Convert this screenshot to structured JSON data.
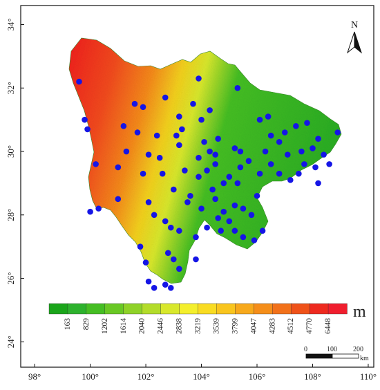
{
  "map": {
    "x_ticks": [
      "98°",
      "100°",
      "102°",
      "104°",
      "106°",
      "108°",
      "110°"
    ],
    "y_ticks": [
      "34°",
      "32°",
      "30°",
      "28°",
      "26°",
      "24°"
    ],
    "extent": {
      "lon_min": 97.5,
      "lon_max": 110.2,
      "lat_min": 23.2,
      "lat_max": 34.6
    },
    "colors": {
      "high": "#f02818",
      "mid_high": "#f58a1a",
      "mid": "#f3e01a",
      "mid_low": "#a6d52b",
      "low": "#33b424",
      "station": "#1515e6"
    }
  },
  "legend": {
    "values": [
      "163",
      "829",
      "1202",
      "1614",
      "2040",
      "2446",
      "2838",
      "3219",
      "3539",
      "3799",
      "4047",
      "4283",
      "4512",
      "4770",
      "6448"
    ],
    "colors": [
      "#1aa51a",
      "#2db22d",
      "#45be23",
      "#69c824",
      "#8fd228",
      "#b3dc2a",
      "#d8e82c",
      "#f4ef2c",
      "#f9dc22",
      "#f9c51e",
      "#f7a91c",
      "#f58e1a",
      "#f2711a",
      "#ef5219",
      "#ee2a1f",
      "#f01e2e"
    ],
    "unit": "m"
  },
  "north_arrow": {
    "label": "N"
  },
  "scale_bar": {
    "labels": [
      "0",
      "100",
      "200"
    ],
    "unit": "km"
  },
  "stations": [
    {
      "lon": 99.6,
      "lat": 32.2
    },
    {
      "lon": 99.9,
      "lat": 30.7
    },
    {
      "lon": 99.8,
      "lat": 31.0
    },
    {
      "lon": 100.2,
      "lat": 29.6
    },
    {
      "lon": 100.0,
      "lat": 28.1
    },
    {
      "lon": 100.3,
      "lat": 28.2
    },
    {
      "lon": 101.2,
      "lat": 30.8
    },
    {
      "lon": 101.6,
      "lat": 31.5
    },
    {
      "lon": 101.7,
      "lat": 30.6
    },
    {
      "lon": 101.3,
      "lat": 30.0
    },
    {
      "lon": 101.9,
      "lat": 31.4
    },
    {
      "lon": 102.1,
      "lat": 29.9
    },
    {
      "lon": 101.0,
      "lat": 29.5
    },
    {
      "lon": 101.0,
      "lat": 28.5
    },
    {
      "lon": 101.9,
      "lat": 29.3
    },
    {
      "lon": 102.5,
      "lat": 29.8
    },
    {
      "lon": 102.6,
      "lat": 29.3
    },
    {
      "lon": 102.7,
      "lat": 31.7
    },
    {
      "lon": 103.1,
      "lat": 30.5
    },
    {
      "lon": 103.3,
      "lat": 30.7
    },
    {
      "lon": 103.2,
      "lat": 30.2
    },
    {
      "lon": 103.4,
      "lat": 29.4
    },
    {
      "lon": 103.7,
      "lat": 31.5
    },
    {
      "lon": 103.9,
      "lat": 32.3
    },
    {
      "lon": 104.3,
      "lat": 31.3
    },
    {
      "lon": 105.3,
      "lat": 32.0
    },
    {
      "lon": 102.1,
      "lat": 28.4
    },
    {
      "lon": 102.7,
      "lat": 27.8
    },
    {
      "lon": 102.3,
      "lat": 28.0
    },
    {
      "lon": 103.0,
      "lat": 28.8
    },
    {
      "lon": 103.2,
      "lat": 27.5
    },
    {
      "lon": 102.9,
      "lat": 27.6
    },
    {
      "lon": 101.8,
      "lat": 27.0
    },
    {
      "lon": 102.0,
      "lat": 26.5
    },
    {
      "lon": 102.8,
      "lat": 26.8
    },
    {
      "lon": 103.0,
      "lat": 26.6
    },
    {
      "lon": 103.2,
      "lat": 26.3
    },
    {
      "lon": 102.1,
      "lat": 25.9
    },
    {
      "lon": 102.3,
      "lat": 25.7
    },
    {
      "lon": 102.7,
      "lat": 25.8
    },
    {
      "lon": 102.9,
      "lat": 25.7
    },
    {
      "lon": 103.8,
      "lat": 26.6
    },
    {
      "lon": 103.8,
      "lat": 27.3
    },
    {
      "lon": 104.2,
      "lat": 27.6
    },
    {
      "lon": 104.0,
      "lat": 28.2
    },
    {
      "lon": 103.6,
      "lat": 28.6
    },
    {
      "lon": 103.9,
      "lat": 29.2
    },
    {
      "lon": 104.2,
      "lat": 29.4
    },
    {
      "lon": 104.5,
      "lat": 29.6
    },
    {
      "lon": 104.1,
      "lat": 30.3
    },
    {
      "lon": 104.3,
      "lat": 30.0
    },
    {
      "lon": 104.6,
      "lat": 30.4
    },
    {
      "lon": 104.0,
      "lat": 31.0
    },
    {
      "lon": 104.5,
      "lat": 28.5
    },
    {
      "lon": 104.8,
      "lat": 28.1
    },
    {
      "lon": 104.6,
      "lat": 27.9
    },
    {
      "lon": 105.0,
      "lat": 29.2
    },
    {
      "lon": 105.3,
      "lat": 29.0
    },
    {
      "lon": 105.4,
      "lat": 29.5
    },
    {
      "lon": 105.7,
      "lat": 29.7
    },
    {
      "lon": 105.2,
      "lat": 30.1
    },
    {
      "lon": 105.4,
      "lat": 30.0
    },
    {
      "lon": 105.2,
      "lat": 28.3
    },
    {
      "lon": 105.5,
      "lat": 28.2
    },
    {
      "lon": 105.8,
      "lat": 28.0
    },
    {
      "lon": 105.2,
      "lat": 27.5
    },
    {
      "lon": 105.5,
      "lat": 27.3
    },
    {
      "lon": 105.9,
      "lat": 27.2
    },
    {
      "lon": 106.2,
      "lat": 27.5
    },
    {
      "lon": 106.1,
      "lat": 29.3
    },
    {
      "lon": 106.0,
      "lat": 28.6
    },
    {
      "lon": 106.5,
      "lat": 29.6
    },
    {
      "lon": 106.3,
      "lat": 30.0
    },
    {
      "lon": 106.5,
      "lat": 30.5
    },
    {
      "lon": 106.1,
      "lat": 31.0
    },
    {
      "lon": 106.4,
      "lat": 31.1
    },
    {
      "lon": 106.8,
      "lat": 30.3
    },
    {
      "lon": 107.0,
      "lat": 30.6
    },
    {
      "lon": 107.1,
      "lat": 29.9
    },
    {
      "lon": 106.8,
      "lat": 29.3
    },
    {
      "lon": 107.2,
      "lat": 29.1
    },
    {
      "lon": 107.5,
      "lat": 29.3
    },
    {
      "lon": 107.6,
      "lat": 30.0
    },
    {
      "lon": 107.4,
      "lat": 30.8
    },
    {
      "lon": 107.8,
      "lat": 30.9
    },
    {
      "lon": 108.0,
      "lat": 30.1
    },
    {
      "lon": 108.1,
      "lat": 29.5
    },
    {
      "lon": 108.2,
      "lat": 30.4
    },
    {
      "lon": 108.4,
      "lat": 29.9
    },
    {
      "lon": 108.6,
      "lat": 29.6
    },
    {
      "lon": 108.9,
      "lat": 30.6
    },
    {
      "lon": 108.2,
      "lat": 29.0
    },
    {
      "lon": 107.7,
      "lat": 29.6
    },
    {
      "lon": 104.8,
      "lat": 29.0
    },
    {
      "lon": 104.7,
      "lat": 27.5
    },
    {
      "lon": 105.0,
      "lat": 27.8
    },
    {
      "lon": 104.4,
      "lat": 28.8
    },
    {
      "lon": 103.5,
      "lat": 28.4
    },
    {
      "lon": 103.2,
      "lat": 31.1
    },
    {
      "lon": 102.4,
      "lat": 30.5
    },
    {
      "lon": 103.9,
      "lat": 29.8
    },
    {
      "lon": 104.5,
      "lat": 29.9
    }
  ]
}
